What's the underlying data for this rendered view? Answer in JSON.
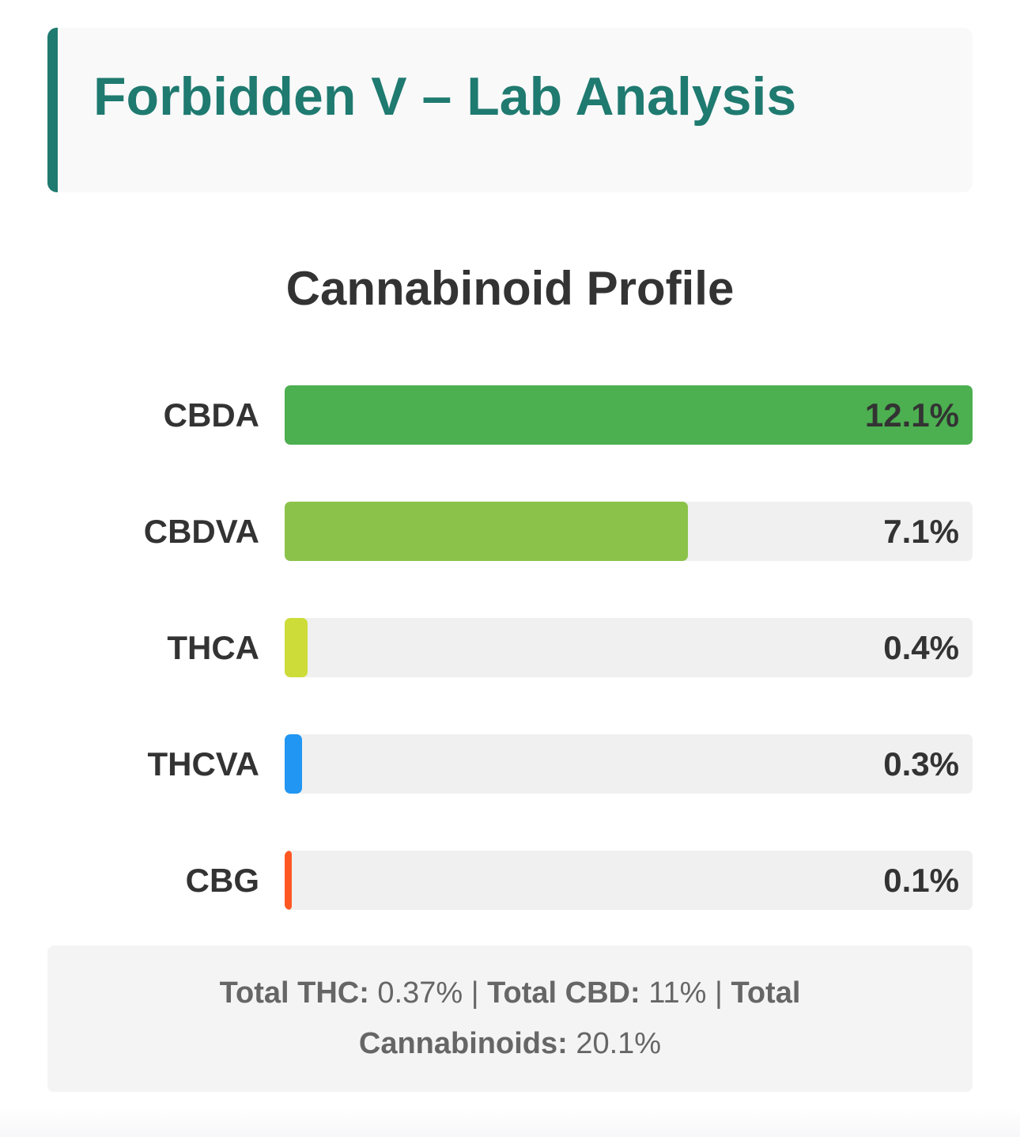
{
  "header": {
    "title": "Forbidden V – Lab Analysis",
    "accent": "#1f7a70"
  },
  "chart_data": {
    "type": "bar",
    "orientation": "horizontal",
    "title": "Cannabinoid Profile",
    "categories": [
      "CBDA",
      "CBDVA",
      "THCA",
      "THCVA",
      "CBG"
    ],
    "values": [
      12.1,
      7.1,
      0.4,
      0.3,
      0.1
    ],
    "value_labels": [
      "12.1%",
      "7.1%",
      "0.4%",
      "0.3%",
      "0.1%"
    ],
    "colors": [
      "#4caf50",
      "#8bc34a",
      "#cddc39",
      "#2196f3",
      "#ff5722"
    ],
    "xlim": [
      0,
      12.1
    ]
  },
  "summary": {
    "thc_label": "Total THC:",
    "thc_value": " 0.37% | ",
    "cbd_label": "Total CBD:",
    "cbd_value": " 11% | ",
    "total_label": "Total Cannabinoids:",
    "total_value": " 20.1%"
  }
}
